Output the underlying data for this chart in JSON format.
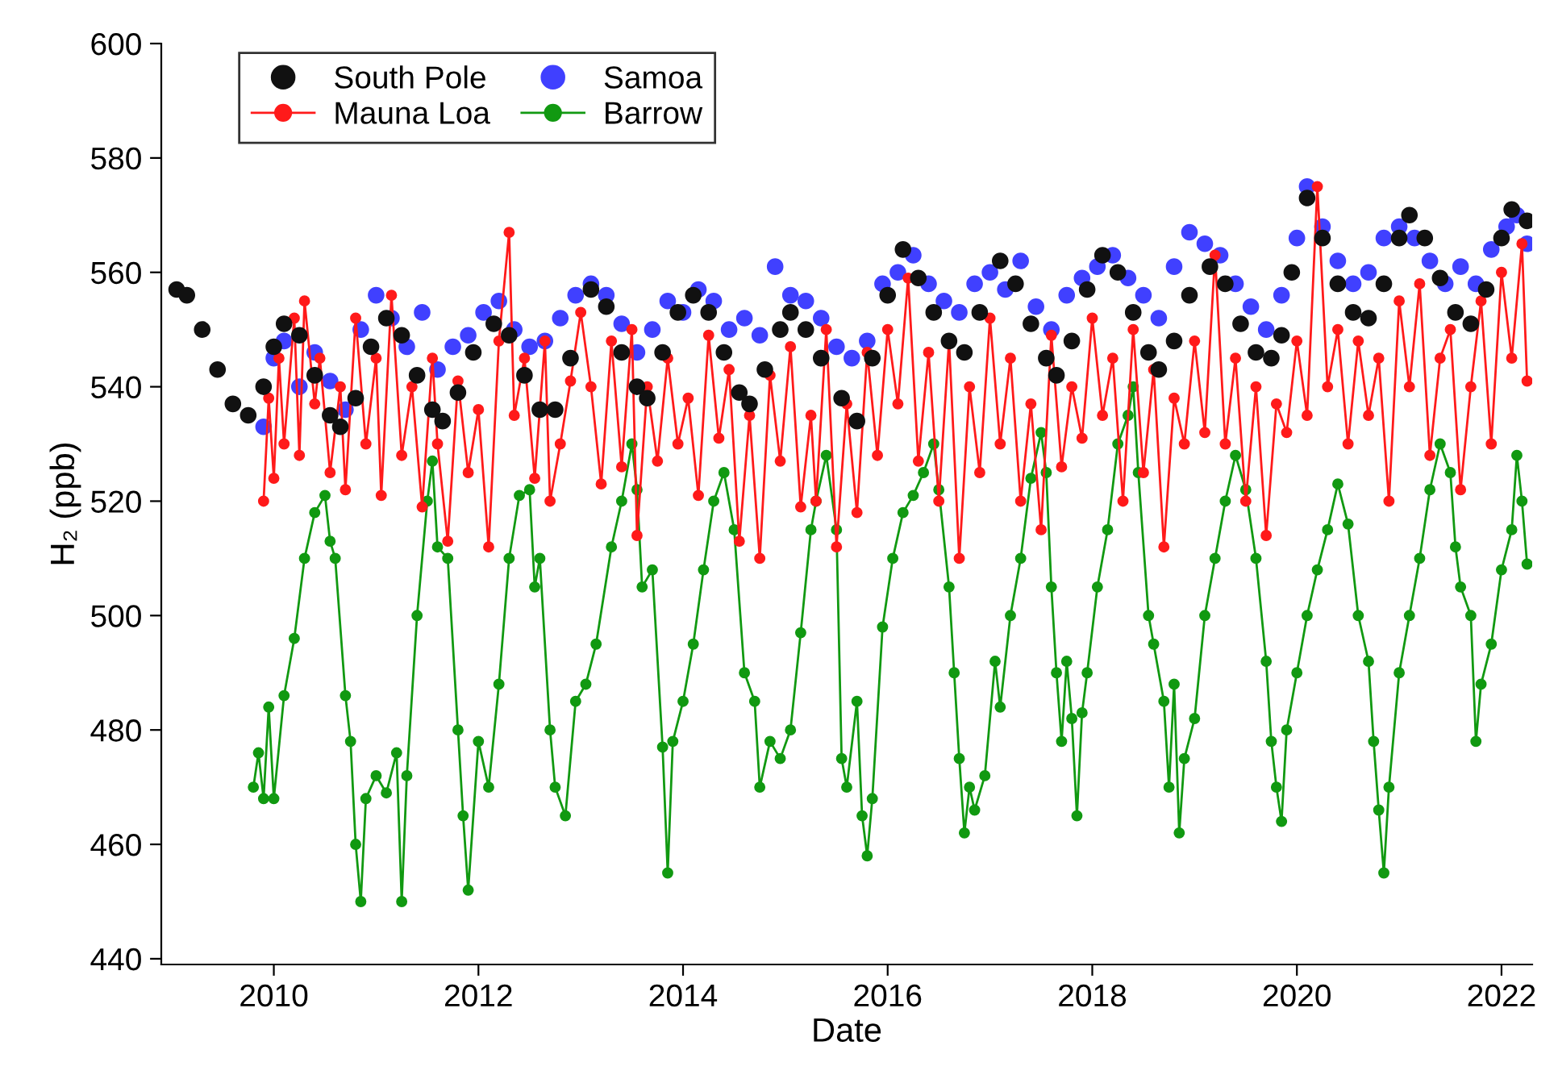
{
  "chart_data": {
    "type": "line",
    "xlabel": "Date",
    "ylabel": "H₂ (ppb)",
    "xlim": [
      2008.9,
      2022.3
    ],
    "xticks": [
      2010,
      2012,
      2014,
      2016,
      2018,
      2020,
      2022
    ],
    "ylim": [
      439,
      600
    ],
    "yticks": [
      440,
      460,
      480,
      500,
      520,
      540,
      560,
      580,
      600
    ],
    "grid": false,
    "legend": "top left",
    "marker": "circle",
    "series": [
      {
        "name": "South Pole",
        "type": "scatter",
        "color": "#111111",
        "x": [
          2009.05,
          2009.15,
          2009.3,
          2009.45,
          2009.6,
          2009.75,
          2009.9,
          2010.0,
          2010.1,
          2010.25,
          2010.4,
          2010.55,
          2010.65,
          2010.8,
          2010.95,
          2011.1,
          2011.25,
          2011.4,
          2011.55,
          2011.65,
          2011.8,
          2011.95,
          2012.15,
          2012.3,
          2012.45,
          2012.6,
          2012.75,
          2012.9,
          2013.1,
          2013.25,
          2013.4,
          2013.55,
          2013.65,
          2013.8,
          2013.95,
          2014.1,
          2014.25,
          2014.4,
          2014.55,
          2014.65,
          2014.8,
          2014.95,
          2015.05,
          2015.2,
          2015.35,
          2015.55,
          2015.7,
          2015.85,
          2016.0,
          2016.15,
          2016.3,
          2016.45,
          2016.6,
          2016.75,
          2016.9,
          2017.1,
          2017.25,
          2017.4,
          2017.55,
          2017.65,
          2017.8,
          2017.95,
          2018.1,
          2018.25,
          2018.4,
          2018.55,
          2018.65,
          2018.8,
          2018.95,
          2019.15,
          2019.3,
          2019.45,
          2019.6,
          2019.75,
          2019.85,
          2019.95,
          2020.1,
          2020.25,
          2020.4,
          2020.55,
          2020.7,
          2020.85,
          2021.0,
          2021.1,
          2021.25,
          2021.4,
          2021.55,
          2021.7,
          2021.85,
          2022.0,
          2022.1,
          2022.25
        ],
        "values": [
          557,
          556,
          550,
          543,
          537,
          535,
          540,
          547,
          551,
          549,
          542,
          535,
          533,
          538,
          547,
          552,
          549,
          542,
          536,
          534,
          539,
          546,
          551,
          549,
          542,
          536,
          536,
          545,
          557,
          554,
          546,
          540,
          538,
          546,
          553,
          556,
          553,
          546,
          539,
          537,
          543,
          550,
          553,
          550,
          545,
          538,
          534,
          545,
          556,
          564,
          559,
          553,
          548,
          546,
          553,
          562,
          558,
          551,
          545,
          542,
          548,
          557,
          563,
          560,
          553,
          546,
          543,
          548,
          556,
          561,
          558,
          551,
          546,
          545,
          549,
          560,
          573,
          566,
          558,
          553,
          552,
          558,
          566,
          570,
          566,
          559,
          553,
          551,
          557,
          566,
          571,
          569
        ]
      },
      {
        "name": "Mauna Loa",
        "color": "#ff1a1a",
        "x": [
          2009.9,
          2009.95,
          2010.0,
          2010.05,
          2010.1,
          2010.2,
          2010.25,
          2010.3,
          2010.4,
          2010.45,
          2010.55,
          2010.65,
          2010.7,
          2010.8,
          2010.9,
          2011.0,
          2011.05,
          2011.15,
          2011.25,
          2011.35,
          2011.45,
          2011.55,
          2011.6,
          2011.7,
          2011.8,
          2011.9,
          2012.0,
          2012.1,
          2012.2,
          2012.3,
          2012.35,
          2012.45,
          2012.55,
          2012.65,
          2012.7,
          2012.8,
          2012.9,
          2013.0,
          2013.1,
          2013.2,
          2013.3,
          2013.4,
          2013.5,
          2013.55,
          2013.65,
          2013.75,
          2013.85,
          2013.95,
          2014.05,
          2014.15,
          2014.25,
          2014.35,
          2014.45,
          2014.55,
          2014.65,
          2014.75,
          2014.85,
          2014.95,
          2015.05,
          2015.15,
          2015.25,
          2015.3,
          2015.4,
          2015.5,
          2015.6,
          2015.7,
          2015.8,
          2015.9,
          2016.0,
          2016.1,
          2016.2,
          2016.3,
          2016.4,
          2016.5,
          2016.6,
          2016.7,
          2016.8,
          2016.9,
          2017.0,
          2017.1,
          2017.2,
          2017.3,
          2017.4,
          2017.5,
          2017.6,
          2017.7,
          2017.8,
          2017.9,
          2018.0,
          2018.1,
          2018.2,
          2018.3,
          2018.4,
          2018.5,
          2018.6,
          2018.7,
          2018.8,
          2018.9,
          2019.0,
          2019.1,
          2019.2,
          2019.3,
          2019.4,
          2019.5,
          2019.6,
          2019.7,
          2019.8,
          2019.9,
          2020.0,
          2020.1,
          2020.2,
          2020.3,
          2020.4,
          2020.5,
          2020.6,
          2020.7,
          2020.8,
          2020.9,
          2021.0,
          2021.1,
          2021.2,
          2021.3,
          2021.4,
          2021.5,
          2021.6,
          2021.7,
          2021.8,
          2021.9,
          2022.0,
          2022.1,
          2022.2,
          2022.25
        ],
        "values": [
          520,
          538,
          524,
          545,
          530,
          552,
          528,
          555,
          537,
          545,
          525,
          540,
          522,
          552,
          530,
          545,
          521,
          556,
          528,
          540,
          519,
          545,
          530,
          513,
          541,
          525,
          536,
          512,
          548,
          567,
          535,
          545,
          524,
          548,
          520,
          530,
          541,
          553,
          540,
          523,
          548,
          526,
          550,
          514,
          540,
          527,
          545,
          530,
          538,
          521,
          549,
          531,
          543,
          513,
          535,
          510,
          542,
          527,
          547,
          519,
          535,
          520,
          550,
          512,
          537,
          518,
          546,
          528,
          550,
          537,
          559,
          527,
          546,
          520,
          548,
          510,
          540,
          525,
          552,
          530,
          545,
          520,
          537,
          515,
          549,
          526,
          540,
          531,
          552,
          535,
          545,
          520,
          550,
          525,
          543,
          512,
          538,
          530,
          548,
          532,
          563,
          530,
          545,
          520,
          540,
          514,
          537,
          532,
          548,
          535,
          575,
          540,
          550,
          530,
          548,
          535,
          545,
          520,
          555,
          540,
          558,
          528,
          545,
          550,
          522,
          540,
          555,
          530,
          560,
          545,
          565,
          541
        ]
      },
      {
        "name": "Samoa",
        "type": "scatter",
        "color": "#4040ff",
        "x": [
          2009.9,
          2010.0,
          2010.1,
          2010.25,
          2010.4,
          2010.55,
          2010.7,
          2010.85,
          2011.0,
          2011.15,
          2011.3,
          2011.45,
          2011.6,
          2011.75,
          2011.9,
          2012.05,
          2012.2,
          2012.35,
          2012.5,
          2012.65,
          2012.8,
          2012.95,
          2013.1,
          2013.25,
          2013.4,
          2013.55,
          2013.7,
          2013.85,
          2014.0,
          2014.15,
          2014.3,
          2014.45,
          2014.6,
          2014.75,
          2014.9,
          2015.05,
          2015.2,
          2015.35,
          2015.5,
          2015.65,
          2015.8,
          2015.95,
          2016.1,
          2016.25,
          2016.4,
          2016.55,
          2016.7,
          2016.85,
          2017.0,
          2017.15,
          2017.3,
          2017.45,
          2017.6,
          2017.75,
          2017.9,
          2018.05,
          2018.2,
          2018.35,
          2018.5,
          2018.65,
          2018.8,
          2018.95,
          2019.1,
          2019.25,
          2019.4,
          2019.55,
          2019.7,
          2019.85,
          2020.0,
          2020.1,
          2020.25,
          2020.4,
          2020.55,
          2020.7,
          2020.85,
          2021.0,
          2021.15,
          2021.3,
          2021.45,
          2021.6,
          2021.75,
          2021.9,
          2022.05,
          2022.15,
          2022.25
        ],
        "values": [
          533,
          545,
          548,
          540,
          546,
          541,
          536,
          550,
          556,
          552,
          547,
          553,
          543,
          547,
          549,
          553,
          555,
          550,
          547,
          548,
          552,
          556,
          558,
          556,
          551,
          546,
          550,
          555,
          553,
          557,
          555,
          550,
          552,
          549,
          561,
          556,
          555,
          552,
          547,
          545,
          548,
          558,
          560,
          563,
          558,
          555,
          553,
          558,
          560,
          557,
          562,
          554,
          550,
          556,
          559,
          561,
          563,
          559,
          556,
          552,
          561,
          567,
          565,
          563,
          558,
          554,
          550,
          556,
          566,
          575,
          568,
          562,
          558,
          560,
          566,
          568,
          566,
          562,
          558,
          561,
          558,
          564,
          568,
          570,
          565
        ]
      },
      {
        "name": "Barrow",
        "color": "#119911",
        "x": [
          2009.8,
          2009.85,
          2009.9,
          2009.95,
          2010.0,
          2010.1,
          2010.2,
          2010.3,
          2010.4,
          2010.5,
          2010.55,
          2010.6,
          2010.7,
          2010.75,
          2010.8,
          2010.85,
          2010.9,
          2011.0,
          2011.1,
          2011.2,
          2011.25,
          2011.3,
          2011.4,
          2011.5,
          2011.55,
          2011.6,
          2011.7,
          2011.8,
          2011.85,
          2011.9,
          2012.0,
          2012.1,
          2012.2,
          2012.3,
          2012.4,
          2012.5,
          2012.55,
          2012.6,
          2012.7,
          2012.75,
          2012.85,
          2012.95,
          2013.05,
          2013.15,
          2013.3,
          2013.4,
          2013.5,
          2013.55,
          2013.6,
          2013.7,
          2013.8,
          2013.85,
          2013.9,
          2014.0,
          2014.1,
          2014.2,
          2014.3,
          2014.4,
          2014.5,
          2014.6,
          2014.7,
          2014.75,
          2014.85,
          2014.95,
          2015.05,
          2015.15,
          2015.25,
          2015.3,
          2015.4,
          2015.5,
          2015.55,
          2015.6,
          2015.7,
          2015.75,
          2015.8,
          2015.85,
          2015.95,
          2016.05,
          2016.15,
          2016.25,
          2016.35,
          2016.45,
          2016.5,
          2016.6,
          2016.65,
          2016.7,
          2016.75,
          2016.8,
          2016.85,
          2016.95,
          2017.05,
          2017.1,
          2017.2,
          2017.3,
          2017.4,
          2017.5,
          2017.55,
          2017.6,
          2017.65,
          2017.7,
          2017.75,
          2017.8,
          2017.85,
          2017.9,
          2017.95,
          2018.05,
          2018.15,
          2018.25,
          2018.35,
          2018.4,
          2018.45,
          2018.55,
          2018.6,
          2018.7,
          2018.75,
          2018.8,
          2018.85,
          2018.9,
          2019.0,
          2019.1,
          2019.2,
          2019.3,
          2019.4,
          2019.5,
          2019.6,
          2019.7,
          2019.75,
          2019.8,
          2019.85,
          2019.9,
          2020.0,
          2020.1,
          2020.2,
          2020.3,
          2020.4,
          2020.5,
          2020.6,
          2020.7,
          2020.75,
          2020.8,
          2020.85,
          2020.9,
          2021.0,
          2021.1,
          2021.2,
          2021.3,
          2021.4,
          2021.5,
          2021.55,
          2021.6,
          2021.7,
          2021.75,
          2021.8,
          2021.9,
          2022.0,
          2022.1,
          2022.15,
          2022.2,
          2022.25
        ],
        "values": [
          470,
          476,
          468,
          484,
          468,
          486,
          496,
          510,
          518,
          521,
          513,
          510,
          486,
          478,
          460,
          450,
          468,
          472,
          469,
          476,
          450,
          472,
          500,
          520,
          527,
          512,
          510,
          480,
          465,
          452,
          478,
          470,
          488,
          510,
          521,
          522,
          505,
          510,
          480,
          470,
          465,
          485,
          488,
          495,
          512,
          520,
          530,
          522,
          505,
          508,
          477,
          455,
          478,
          485,
          495,
          508,
          520,
          525,
          515,
          490,
          485,
          470,
          478,
          475,
          480,
          497,
          515,
          520,
          528,
          515,
          475,
          470,
          485,
          465,
          458,
          468,
          498,
          510,
          518,
          521,
          525,
          530,
          522,
          505,
          490,
          475,
          462,
          470,
          466,
          472,
          492,
          484,
          500,
          510,
          524,
          532,
          525,
          505,
          490,
          478,
          492,
          482,
          465,
          483,
          490,
          505,
          515,
          530,
          535,
          540,
          525,
          500,
          495,
          485,
          470,
          488,
          462,
          475,
          482,
          500,
          510,
          520,
          528,
          522,
          510,
          492,
          478,
          470,
          464,
          480,
          490,
          500,
          508,
          515,
          523,
          516,
          500,
          492,
          478,
          466,
          455,
          470,
          490,
          500,
          510,
          522,
          530,
          525,
          512,
          505,
          500,
          478,
          488,
          495,
          508,
          515,
          528,
          520,
          509
        ]
      }
    ]
  }
}
